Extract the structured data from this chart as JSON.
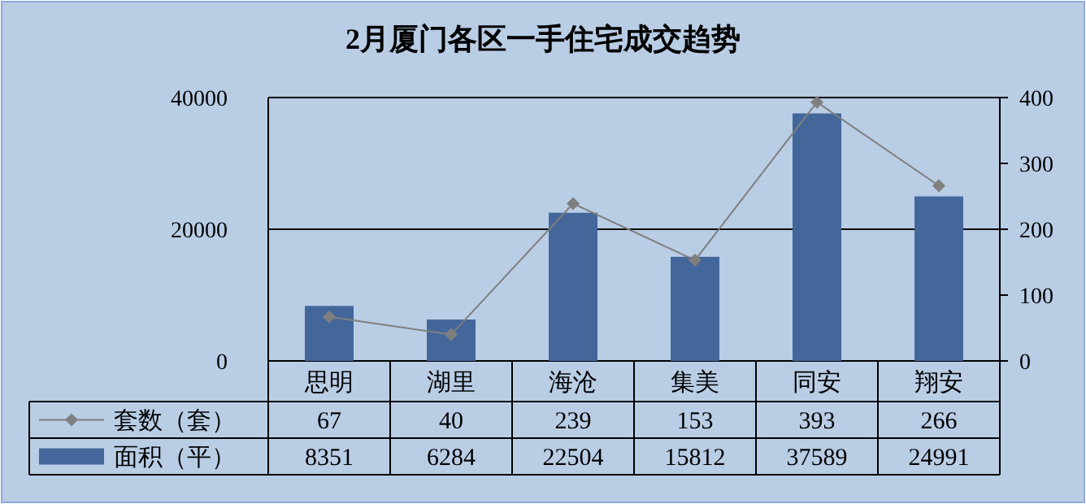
{
  "chart_data": {
    "type": "bar",
    "title": "2月厦门各区一手住宅成交趋势",
    "categories": [
      "思明",
      "湖里",
      "海沧",
      "集美",
      "同安",
      "翔安"
    ],
    "series": [
      {
        "name": "套数（套）",
        "type": "line",
        "axis": "y2",
        "color": "#7f7f7f",
        "values": [
          67,
          40,
          239,
          153,
          393,
          266
        ]
      },
      {
        "name": "面积（平）",
        "color": "#43679b",
        "values": [
          8351,
          6284,
          22504,
          15812,
          37589,
          24991
        ]
      }
    ],
    "ylim": [
      0,
      40000
    ],
    "yticks": [
      0,
      20000,
      40000
    ],
    "y2lim": [
      0,
      400
    ],
    "y2ticks": [
      0,
      100,
      200,
      300,
      400
    ],
    "grid": "y",
    "legend": "bottom",
    "data_labels": true,
    "marker": "diamond"
  }
}
